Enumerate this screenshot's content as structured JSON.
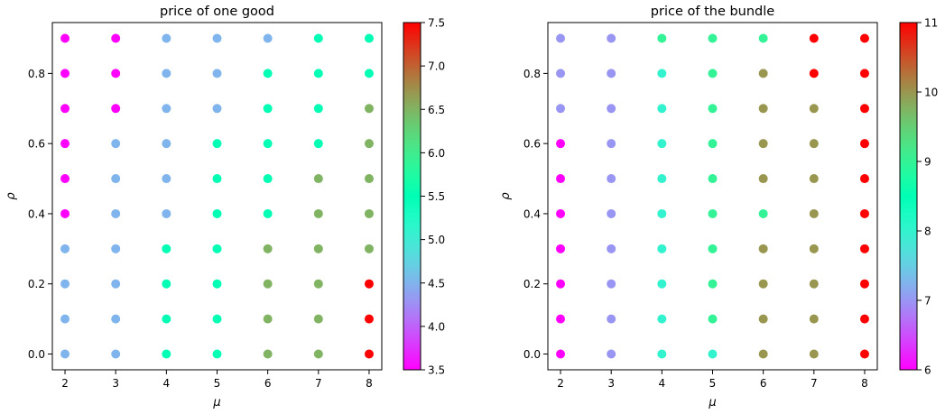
{
  "chart_data": [
    {
      "type": "scatter",
      "title": "price of one good",
      "xlabel": "μ",
      "ylabel": "ρ",
      "x_ticks": [
        2,
        3,
        4,
        5,
        6,
        7,
        8
      ],
      "y_ticks": [
        0.0,
        0.2,
        0.4,
        0.6,
        0.8
      ],
      "y_tick_labels": [
        "0.0",
        "0.2",
        "0.4",
        "0.6",
        "0.8"
      ],
      "xlim": [
        1.75,
        8.25
      ],
      "ylim": [
        -0.045,
        0.945
      ],
      "colormap": "rainbow",
      "color_range": [
        3.5,
        7.5
      ],
      "colorbar_ticks": [
        3.5,
        4.0,
        4.5,
        5.0,
        5.5,
        6.0,
        6.5,
        7.0,
        7.5
      ],
      "colorbar_tick_labels": [
        "3.5",
        "4.0",
        "4.5",
        "5.0",
        "5.5",
        "6.0",
        "6.5",
        "7.0",
        "7.5"
      ],
      "mu": [
        2,
        3,
        4,
        5,
        6,
        7,
        8
      ],
      "rho": [
        0.0,
        0.1,
        0.2,
        0.3,
        0.4,
        0.5,
        0.6,
        0.7,
        0.8,
        0.9
      ],
      "price": [
        [
          4.5,
          4.5,
          5.5,
          5.5,
          6.5,
          6.5,
          7.5
        ],
        [
          4.5,
          4.5,
          5.5,
          5.5,
          6.5,
          6.5,
          7.5
        ],
        [
          4.5,
          4.5,
          5.5,
          5.5,
          6.5,
          6.5,
          7.5
        ],
        [
          4.5,
          4.5,
          5.5,
          5.5,
          6.5,
          6.5,
          6.5
        ],
        [
          3.5,
          4.5,
          4.5,
          5.5,
          5.5,
          6.5,
          6.5
        ],
        [
          3.5,
          4.5,
          4.5,
          5.5,
          5.5,
          6.5,
          6.5
        ],
        [
          3.5,
          4.5,
          4.5,
          5.5,
          5.5,
          5.5,
          6.5
        ],
        [
          3.5,
          3.5,
          4.5,
          4.5,
          5.5,
          5.5,
          6.5
        ],
        [
          3.5,
          3.5,
          4.5,
          4.5,
          5.5,
          5.5,
          5.5
        ],
        [
          3.5,
          3.5,
          4.5,
          4.5,
          4.5,
          5.5,
          5.5
        ]
      ]
    },
    {
      "type": "scatter",
      "title": "price of the bundle",
      "xlabel": "μ",
      "ylabel": "ρ",
      "x_ticks": [
        2,
        3,
        4,
        5,
        6,
        7,
        8
      ],
      "y_ticks": [
        0.0,
        0.2,
        0.4,
        0.6,
        0.8
      ],
      "y_tick_labels": [
        "0.0",
        "0.2",
        "0.4",
        "0.6",
        "0.8"
      ],
      "xlim": [
        1.75,
        8.25
      ],
      "ylim": [
        -0.045,
        0.945
      ],
      "colormap": "rainbow",
      "color_range": [
        6,
        11
      ],
      "colorbar_ticks": [
        6,
        7,
        8,
        9,
        10,
        11
      ],
      "colorbar_tick_labels": [
        "6",
        "7",
        "8",
        "9",
        "10",
        "11"
      ],
      "mu": [
        2,
        3,
        4,
        5,
        6,
        7,
        8
      ],
      "rho": [
        0.0,
        0.1,
        0.2,
        0.3,
        0.4,
        0.5,
        0.6,
        0.7,
        0.8,
        0.9
      ],
      "price": [
        [
          6,
          7,
          8,
          8,
          10,
          10,
          11
        ],
        [
          6,
          7,
          8,
          9,
          10,
          10,
          11
        ],
        [
          6,
          7,
          8,
          9,
          10,
          10,
          11
        ],
        [
          6,
          7,
          8,
          9,
          10,
          10,
          11
        ],
        [
          6,
          7,
          8,
          9,
          9,
          10,
          11
        ],
        [
          6,
          7,
          8,
          9,
          10,
          10,
          11
        ],
        [
          6,
          7,
          8,
          9,
          10,
          10,
          11
        ],
        [
          7,
          7,
          8,
          9,
          10,
          10,
          11
        ],
        [
          7,
          7,
          8,
          9,
          10,
          11,
          11
        ],
        [
          7,
          7,
          9,
          9,
          9,
          11,
          11
        ]
      ]
    }
  ]
}
